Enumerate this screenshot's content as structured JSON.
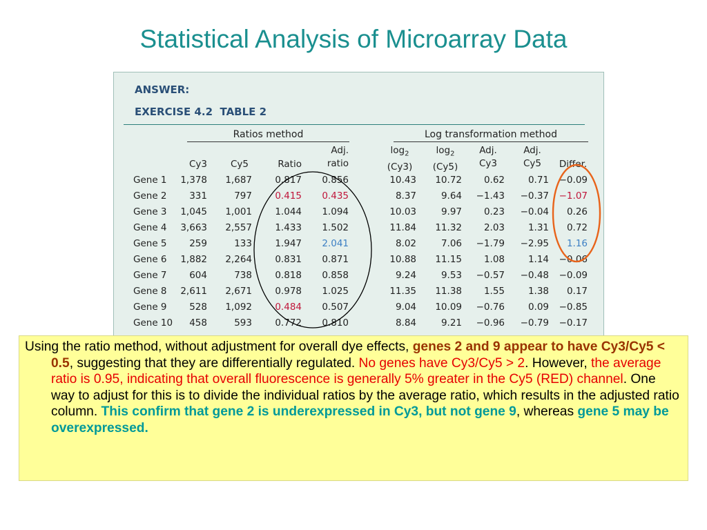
{
  "title": "Statistical Analysis of Microarray Data",
  "panel": {
    "answer": "ANSWER:",
    "exercise": "EXERCISE 4.2",
    "table": "TABLE 2",
    "group_ratio": "Ratios method",
    "group_log": "Log transformation method",
    "headers": {
      "cy3": "Cy3",
      "cy5": "Cy5",
      "ratio": "Ratio",
      "adj1": "Adj.",
      "adj2": "ratio",
      "log_a": "log",
      "sub": "2",
      "log_a2": "(Cy3)",
      "log_b": "log",
      "log_b2": "(Cy5)",
      "adj_cy3_1": "Adj.",
      "adj_cy3_2": "Cy3",
      "adj_cy5_1": "Adj.",
      "adj_cy5_2": "Cy5",
      "differ": "Differ."
    },
    "rows": [
      {
        "gene": "Gene 1",
        "cy3": "1,378",
        "cy5": "1,687",
        "ratio": "0.817",
        "adj": "0.856",
        "lcy3": "10.43",
        "lcy5": "10.72",
        "acy3": "0.62",
        "acy5": "0.71",
        "diff": "−0.09"
      },
      {
        "gene": "Gene 2",
        "cy3": "331",
        "cy5": "797",
        "ratio": "0.415",
        "adj": "0.435",
        "lcy3": "8.37",
        "lcy5": "9.64",
        "acy3": "−1.43",
        "acy5": "−0.37",
        "diff": "−1.07"
      },
      {
        "gene": "Gene 3",
        "cy3": "1,045",
        "cy5": "1,001",
        "ratio": "1.044",
        "adj": "1.094",
        "lcy3": "10.03",
        "lcy5": "9.97",
        "acy3": "0.23",
        "acy5": "−0.04",
        "diff": "0.26"
      },
      {
        "gene": "Gene 4",
        "cy3": "3,663",
        "cy5": "2,557",
        "ratio": "1.433",
        "adj": "1.502",
        "lcy3": "11.84",
        "lcy5": "11.32",
        "acy3": "2.03",
        "acy5": "1.31",
        "diff": "0.72"
      },
      {
        "gene": "Gene 5",
        "cy3": "259",
        "cy5": "133",
        "ratio": "1.947",
        "adj": "2.041",
        "lcy3": "8.02",
        "lcy5": "7.06",
        "acy3": "−1.79",
        "acy5": "−2.95",
        "diff": "1.16"
      },
      {
        "gene": "Gene 6",
        "cy3": "1,882",
        "cy5": "2,264",
        "ratio": "0.831",
        "adj": "0.871",
        "lcy3": "10.88",
        "lcy5": "11.15",
        "acy3": "1.08",
        "acy5": "1.14",
        "diff": "−0.06"
      },
      {
        "gene": "Gene 7",
        "cy3": "604",
        "cy5": "738",
        "ratio": "0.818",
        "adj": "0.858",
        "lcy3": "9.24",
        "lcy5": "9.53",
        "acy3": "−0.57",
        "acy5": "−0.48",
        "diff": "−0.09"
      },
      {
        "gene": "Gene 8",
        "cy3": "2,611",
        "cy5": "2,671",
        "ratio": "0.978",
        "adj": "1.025",
        "lcy3": "11.35",
        "lcy5": "11.38",
        "acy3": "1.55",
        "acy5": "1.38",
        "diff": "0.17"
      },
      {
        "gene": "Gene 9",
        "cy3": "528",
        "cy5": "1,092",
        "ratio": "0.484",
        "adj": "0.507",
        "lcy3": "9.04",
        "lcy5": "10.09",
        "acy3": "−0.76",
        "acy5": "0.09",
        "diff": "−0.85"
      },
      {
        "gene": "Gene 10",
        "cy3": "458",
        "cy5": "593",
        "ratio": "0.772",
        "adj": "0.810",
        "lcy3": "8.84",
        "lcy5": "9.21",
        "acy3": "−0.96",
        "acy5": "−0.79",
        "diff": "−0.17"
      }
    ],
    "highlight_colors": {
      "red": "#c0163b",
      "blue": "#3c7fc4",
      "oval_black": "#000000",
      "oval_orange": "#e8631a"
    }
  },
  "note": {
    "p1": "Using the ratio method, without adjustment for overall dye effects, ",
    "p2": "genes 2 and 9 appear to have Cy3/Cy5 < 0.5",
    "p3": ", suggesting that they are differentially regulated. ",
    "p4": "No genes have Cy3/Cy5 > 2",
    "p5": ". However, ",
    "p6": "the average ratio is 0.95, indicating that overall fluorescence is generally 5% greater in the Cy5 (RED) channel",
    "p7": ". One way to adjust for this is to divide the individual ratios by the average ratio, which results in the adjusted ratio column. ",
    "p8": "This confirm that gene 2 is underexpressed in Cy3, but not gene 9",
    "p9": ", whereas ",
    "p10": "gene 5 may be overexpressed."
  }
}
